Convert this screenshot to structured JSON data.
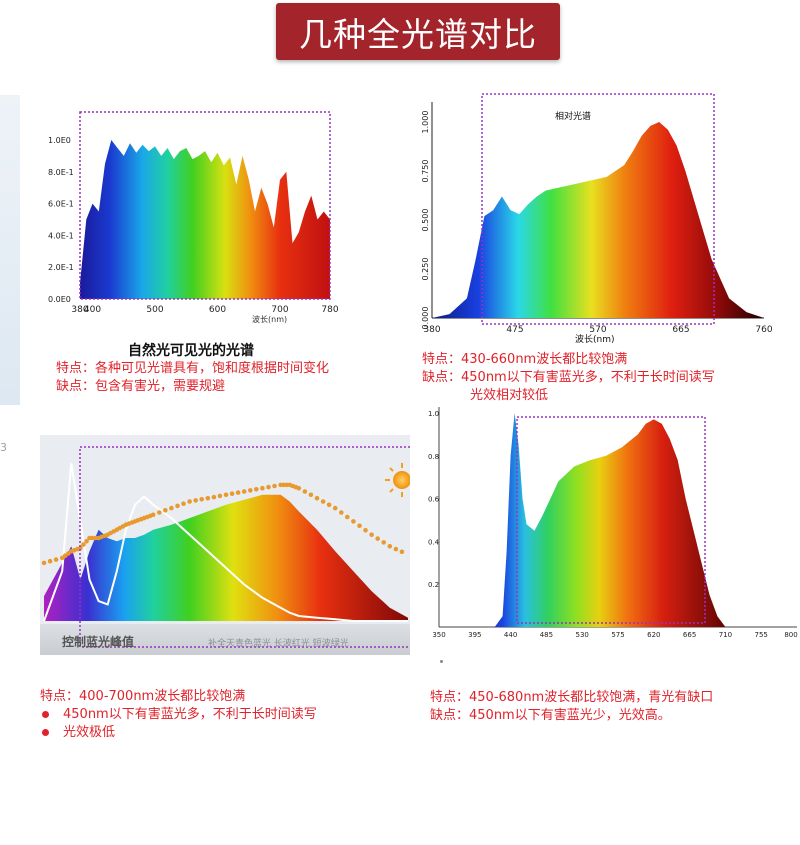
{
  "title": "几种全光谱对比",
  "sidebar_fragment": "3",
  "colors": {
    "title_bg": "#a3242b",
    "note_red": "#e0222a",
    "dotted_box": "#9b30c0"
  },
  "chart_data": [
    {
      "type": "area",
      "title": "",
      "xlabel": "波长(nm)",
      "x_ticks": [
        "380",
        "400",
        "500",
        "600",
        "700",
        "780"
      ],
      "y_ticks": [
        "1.0E0",
        "8.0E-1",
        "6.0E-1",
        "4.0E-1",
        "2.0E-1",
        "0.0E0"
      ],
      "xlim": [
        380,
        780
      ],
      "ylim": [
        0,
        1.0
      ],
      "x": [
        380,
        390,
        400,
        410,
        420,
        430,
        440,
        450,
        460,
        470,
        480,
        490,
        500,
        510,
        520,
        530,
        540,
        550,
        560,
        570,
        580,
        590,
        600,
        610,
        620,
        630,
        640,
        650,
        660,
        670,
        680,
        690,
        700,
        710,
        720,
        730,
        740,
        750,
        760,
        770,
        780
      ],
      "values": [
        0.1,
        0.5,
        0.6,
        0.55,
        0.85,
        1.0,
        0.95,
        0.9,
        0.98,
        0.92,
        0.97,
        0.93,
        0.96,
        0.9,
        0.95,
        0.88,
        0.93,
        0.95,
        0.88,
        0.9,
        0.93,
        0.86,
        0.92,
        0.84,
        0.89,
        0.72,
        0.9,
        0.75,
        0.55,
        0.7,
        0.6,
        0.45,
        0.75,
        0.8,
        0.35,
        0.42,
        0.55,
        0.65,
        0.5,
        0.55,
        0.5
      ],
      "caption": "自然光可见光的光谱",
      "features": "特点：各种可见光谱具有，饱和度根据时间变化",
      "drawbacks": "缺点：包含有害光，需要规避"
    },
    {
      "type": "area",
      "title": "相对光谱",
      "xlabel": "波长(nm)",
      "x_ticks": [
        "380",
        "475",
        "570",
        "665",
        "760"
      ],
      "y_ticks": [
        "0.000",
        "0.250",
        "0.500",
        "0.750",
        "1.000"
      ],
      "xlim": [
        380,
        760
      ],
      "ylim": [
        0,
        1.0
      ],
      "x": [
        380,
        400,
        420,
        430,
        440,
        450,
        460,
        470,
        480,
        490,
        500,
        510,
        520,
        540,
        560,
        580,
        600,
        610,
        620,
        630,
        640,
        650,
        660,
        670,
        680,
        690,
        700,
        720,
        740,
        760
      ],
      "values": [
        0.0,
        0.02,
        0.1,
        0.3,
        0.52,
        0.55,
        0.62,
        0.55,
        0.53,
        0.58,
        0.62,
        0.65,
        0.66,
        0.68,
        0.7,
        0.72,
        0.78,
        0.85,
        0.93,
        0.98,
        1.0,
        0.96,
        0.88,
        0.75,
        0.6,
        0.45,
        0.3,
        0.1,
        0.03,
        0.0
      ],
      "features": "特点：430-660nm波长都比较饱满",
      "drawbacks": "缺点：450nm以下有害蓝光多，不利于长时间读写",
      "drawbacks2": "光效相对较低"
    },
    {
      "type": "area",
      "title": "",
      "xlabel": "",
      "x_ticks": [],
      "y_ticks": [],
      "xlim": [
        380,
        780
      ],
      "ylim": [
        0,
        1.0
      ],
      "x": [
        380,
        400,
        410,
        420,
        430,
        440,
        450,
        460,
        470,
        480,
        490,
        500,
        520,
        540,
        560,
        580,
        600,
        620,
        640,
        650,
        660,
        680,
        700,
        720,
        740,
        760,
        780
      ],
      "values": [
        0.15,
        0.35,
        0.45,
        0.25,
        0.42,
        0.55,
        0.5,
        0.48,
        0.5,
        0.5,
        0.52,
        0.55,
        0.58,
        0.62,
        0.66,
        0.7,
        0.73,
        0.76,
        0.76,
        0.72,
        0.66,
        0.55,
        0.42,
        0.3,
        0.18,
        0.08,
        0.02
      ],
      "white_curve": [
        0.0,
        0.3,
        0.95,
        0.6,
        0.25,
        0.12,
        0.1,
        0.3,
        0.55,
        0.7,
        0.75,
        0.7,
        0.62,
        0.52,
        0.42,
        0.32,
        0.22,
        0.14,
        0.08,
        0.05,
        0.03,
        0.02,
        0.01,
        0.0,
        0.0,
        0.0,
        0.0
      ],
      "dotted_curve": [
        0.35,
        0.38,
        0.42,
        0.44,
        0.5,
        0.5,
        0.52,
        0.55,
        0.58,
        0.6,
        0.62,
        0.64,
        0.68,
        0.72,
        0.74,
        0.76,
        0.78,
        0.8,
        0.82,
        0.82,
        0.8,
        0.74,
        0.68,
        0.6,
        0.52,
        0.45,
        0.4
      ],
      "bottom_labels": [
        "控制蓝光峰值",
        "补全天青色蓝光 长波红光 短波绿光"
      ],
      "features": "特点：400-700nm波长都比较饱满",
      "bullets": [
        "450nm以下有害蓝光多，不利于长时间读写",
        "光效极低"
      ]
    },
    {
      "type": "area",
      "title": "",
      "xlabel": "",
      "x_ticks": [
        "350",
        "395",
        "440",
        "485",
        "530",
        "575",
        "620",
        "665",
        "710",
        "755",
        "800"
      ],
      "y_ticks": [
        "1.0",
        "0.8",
        "0.6",
        "0.4",
        "0.2"
      ],
      "xlim": [
        350,
        800
      ],
      "ylim": [
        0,
        1.0
      ],
      "x": [
        350,
        400,
        420,
        430,
        435,
        440,
        445,
        450,
        455,
        460,
        470,
        480,
        490,
        500,
        520,
        540,
        560,
        580,
        600,
        610,
        620,
        630,
        640,
        650,
        660,
        670,
        680,
        690,
        700,
        710
      ],
      "values": [
        0.0,
        0.0,
        0.0,
        0.05,
        0.35,
        0.8,
        1.0,
        0.85,
        0.6,
        0.48,
        0.45,
        0.52,
        0.6,
        0.68,
        0.75,
        0.78,
        0.8,
        0.84,
        0.9,
        0.95,
        0.97,
        0.95,
        0.88,
        0.78,
        0.6,
        0.45,
        0.3,
        0.15,
        0.05,
        0.0
      ],
      "features": "特点：450-680nm波长都比较饱满，青光有缺口",
      "drawbacks": "缺点：450nm以下有害蓝光少，光效高。"
    }
  ]
}
